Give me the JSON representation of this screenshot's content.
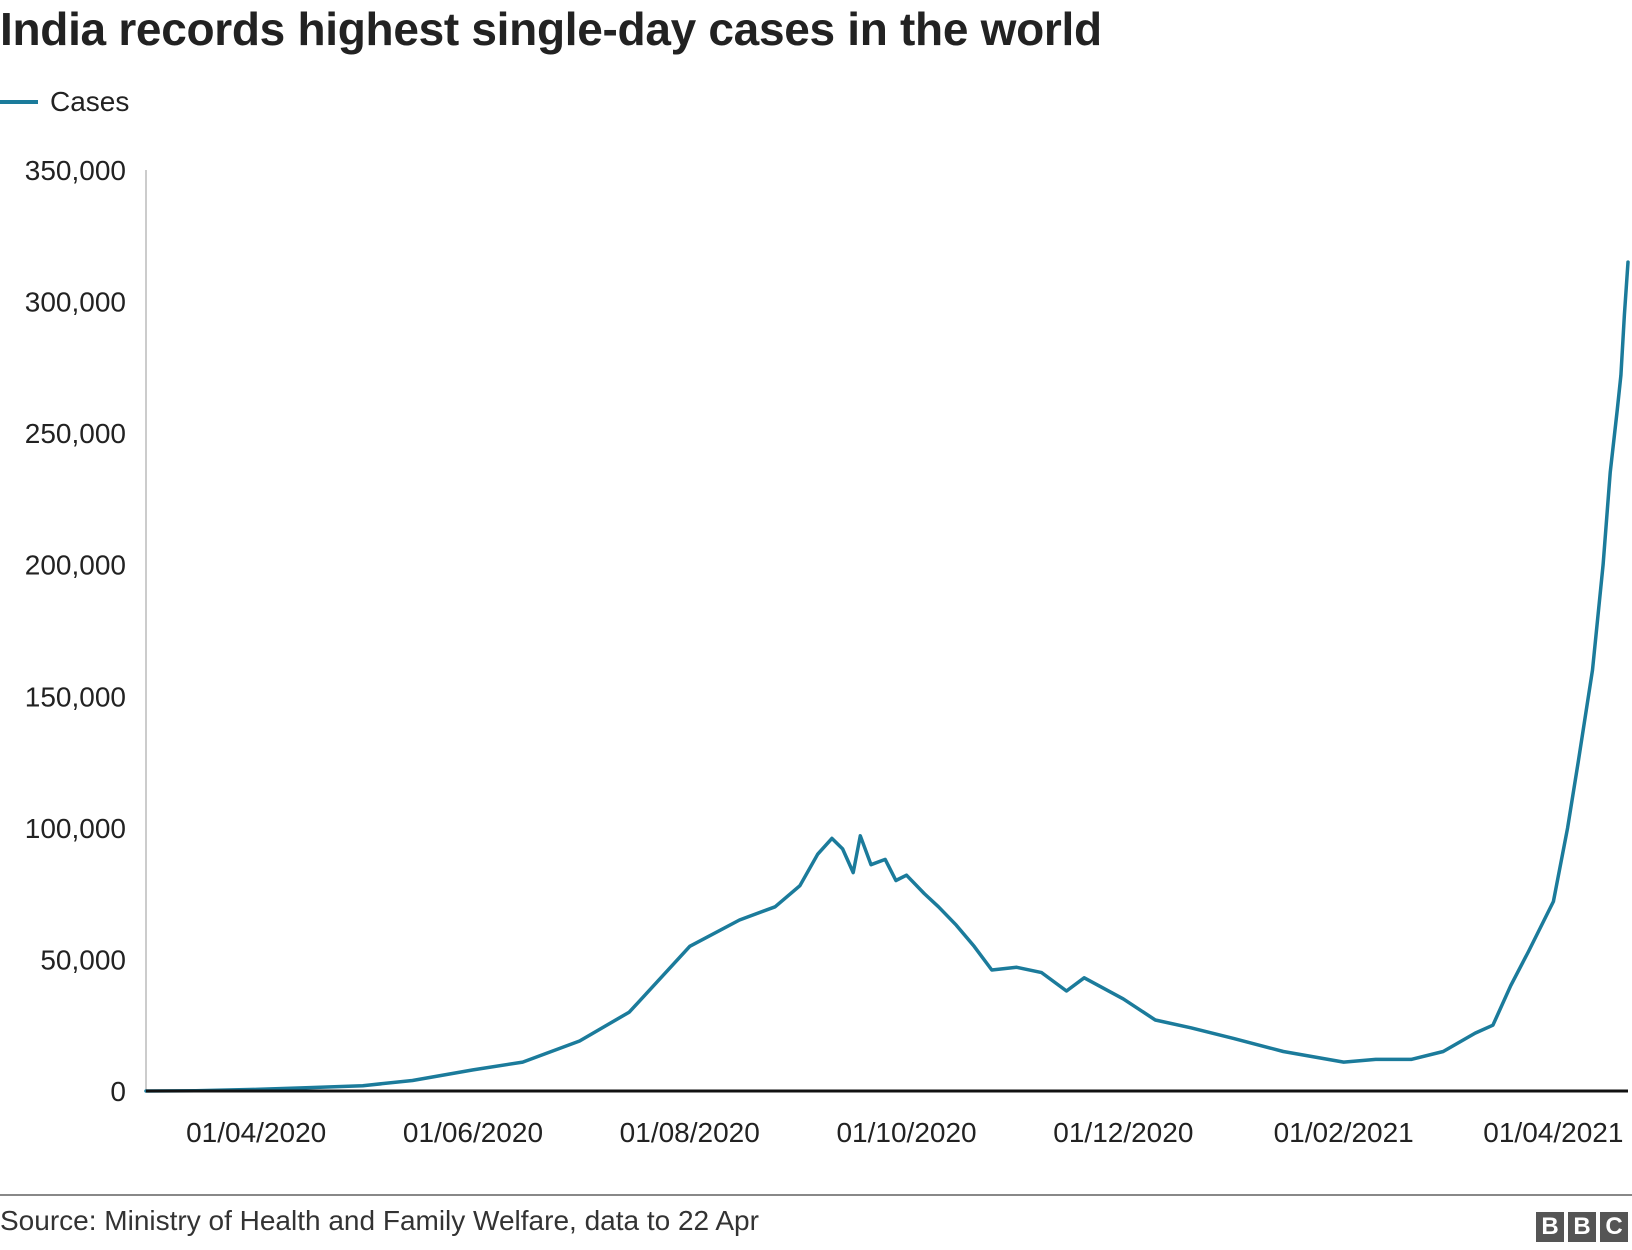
{
  "title": "India records highest single-day cases in the world",
  "source": "Source: Ministry of Health and Family Welfare, data to 22 Apr",
  "logo_text": "BBC",
  "chart_data": {
    "type": "line",
    "title": "India records highest single-day cases in the world",
    "xlabel": "",
    "ylabel": "",
    "ylim": [
      0,
      350000
    ],
    "yticks": [
      0,
      50000,
      100000,
      150000,
      200000,
      250000,
      300000,
      350000
    ],
    "ytick_labels": [
      "0",
      "50,000",
      "100,000",
      "150,000",
      "200,000",
      "250,000",
      "300,000",
      "350,000"
    ],
    "xlim": [
      "2020-03-01",
      "2021-04-22"
    ],
    "xticks": [
      "2020-04-01",
      "2020-06-01",
      "2020-08-01",
      "2020-10-01",
      "2020-12-01",
      "2021-02-01",
      "2021-04-01"
    ],
    "xtick_labels": [
      "01/04/2020",
      "01/06/2020",
      "01/08/2020",
      "01/10/2020",
      "01/12/2020",
      "01/02/2021",
      "01/04/2021"
    ],
    "grid": false,
    "legend": "top-left",
    "series": [
      {
        "name": "Cases",
        "color": "#1b7b9b",
        "x": [
          "2020-03-01",
          "2020-03-15",
          "2020-04-01",
          "2020-04-15",
          "2020-05-01",
          "2020-05-15",
          "2020-06-01",
          "2020-06-15",
          "2020-07-01",
          "2020-07-15",
          "2020-08-01",
          "2020-08-15",
          "2020-08-25",
          "2020-09-01",
          "2020-09-06",
          "2020-09-10",
          "2020-09-13",
          "2020-09-16",
          "2020-09-18",
          "2020-09-21",
          "2020-09-25",
          "2020-09-28",
          "2020-10-01",
          "2020-10-06",
          "2020-10-10",
          "2020-10-15",
          "2020-10-20",
          "2020-10-25",
          "2020-11-01",
          "2020-11-08",
          "2020-11-15",
          "2020-11-20",
          "2020-12-01",
          "2020-12-10",
          "2020-12-20",
          "2021-01-01",
          "2021-01-15",
          "2021-02-01",
          "2021-02-10",
          "2021-02-20",
          "2021-03-01",
          "2021-03-10",
          "2021-03-15",
          "2021-03-20",
          "2021-03-25",
          "2021-04-01",
          "2021-04-05",
          "2021-04-08",
          "2021-04-12",
          "2021-04-15",
          "2021-04-17",
          "2021-04-19",
          "2021-04-20",
          "2021-04-21",
          "2021-04-22"
        ],
        "y": [
          0,
          100,
          600,
          1200,
          2000,
          4000,
          8000,
          11000,
          19000,
          30000,
          55000,
          65000,
          70000,
          78000,
          90000,
          96000,
          92000,
          83000,
          97000,
          86000,
          88000,
          80000,
          82000,
          75000,
          70000,
          63000,
          55000,
          46000,
          47000,
          45000,
          38000,
          43000,
          35000,
          27000,
          24000,
          20000,
          15000,
          11000,
          12000,
          12000,
          15000,
          22000,
          25000,
          40000,
          53000,
          72000,
          100000,
          125000,
          160000,
          200000,
          235000,
          259000,
          272000,
          295000,
          315000
        ]
      }
    ]
  }
}
